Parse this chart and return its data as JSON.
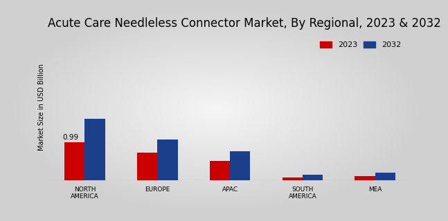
{
  "title": "Acute Care Needleless Connector Market, By Regional, 2023 & 2032",
  "ylabel": "Market Size in USD Billion",
  "categories": [
    "NORTH\nAMERICA",
    "EUROPE",
    "APAC",
    "SOUTH\nAMERICA",
    "MEA"
  ],
  "values_2023": [
    0.99,
    0.72,
    0.5,
    0.07,
    0.1
  ],
  "values_2032": [
    1.6,
    1.05,
    0.75,
    0.14,
    0.19
  ],
  "color_2023": "#cc0000",
  "color_2032": "#1b3f8b",
  "bar_annotation": "0.99",
  "background_color_outer": "#d0d0d0",
  "background_color_inner": "#f5f5f5",
  "title_fontsize": 12,
  "legend_labels": [
    "2023",
    "2032"
  ],
  "ylim": [
    0,
    3.8
  ],
  "bar_width": 0.28
}
